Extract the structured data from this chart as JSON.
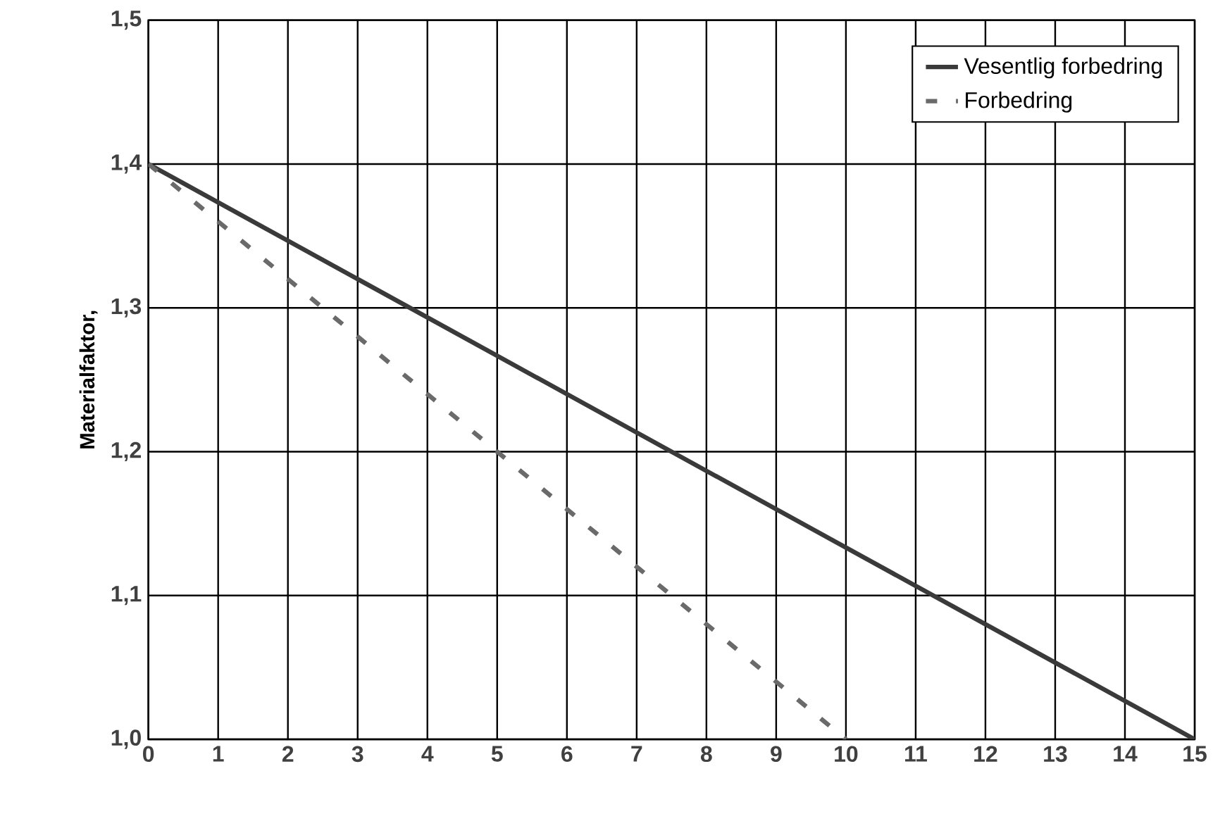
{
  "chart_data": {
    "type": "line",
    "ylabel": "Materialfaktor,",
    "xlim": [
      0,
      15
    ],
    "ylim": [
      1.0,
      1.5
    ],
    "xticks": [
      0,
      1,
      2,
      3,
      4,
      5,
      6,
      7,
      8,
      9,
      10,
      11,
      12,
      13,
      14,
      15
    ],
    "yticks": [
      {
        "value": 1.0,
        "label": "1,0"
      },
      {
        "value": 1.1,
        "label": "1,1"
      },
      {
        "value": 1.2,
        "label": "1,2"
      },
      {
        "value": 1.3,
        "label": "1,3"
      },
      {
        "value": 1.4,
        "label": "1,4"
      },
      {
        "value": 1.5,
        "label": "1,5"
      }
    ],
    "grid": true,
    "legend": "top right",
    "marker": "none",
    "series": [
      {
        "name": "Vesentlig forbedring",
        "color": "#3a3a3a",
        "line_style": "solid",
        "x": [
          0,
          15
        ],
        "values": [
          1.4,
          1.0
        ]
      },
      {
        "name": "Forbedring",
        "color": "#6a6a6a",
        "line_style": "dashed",
        "x": [
          0,
          10
        ],
        "values": [
          1.4,
          1.0
        ]
      }
    ]
  }
}
